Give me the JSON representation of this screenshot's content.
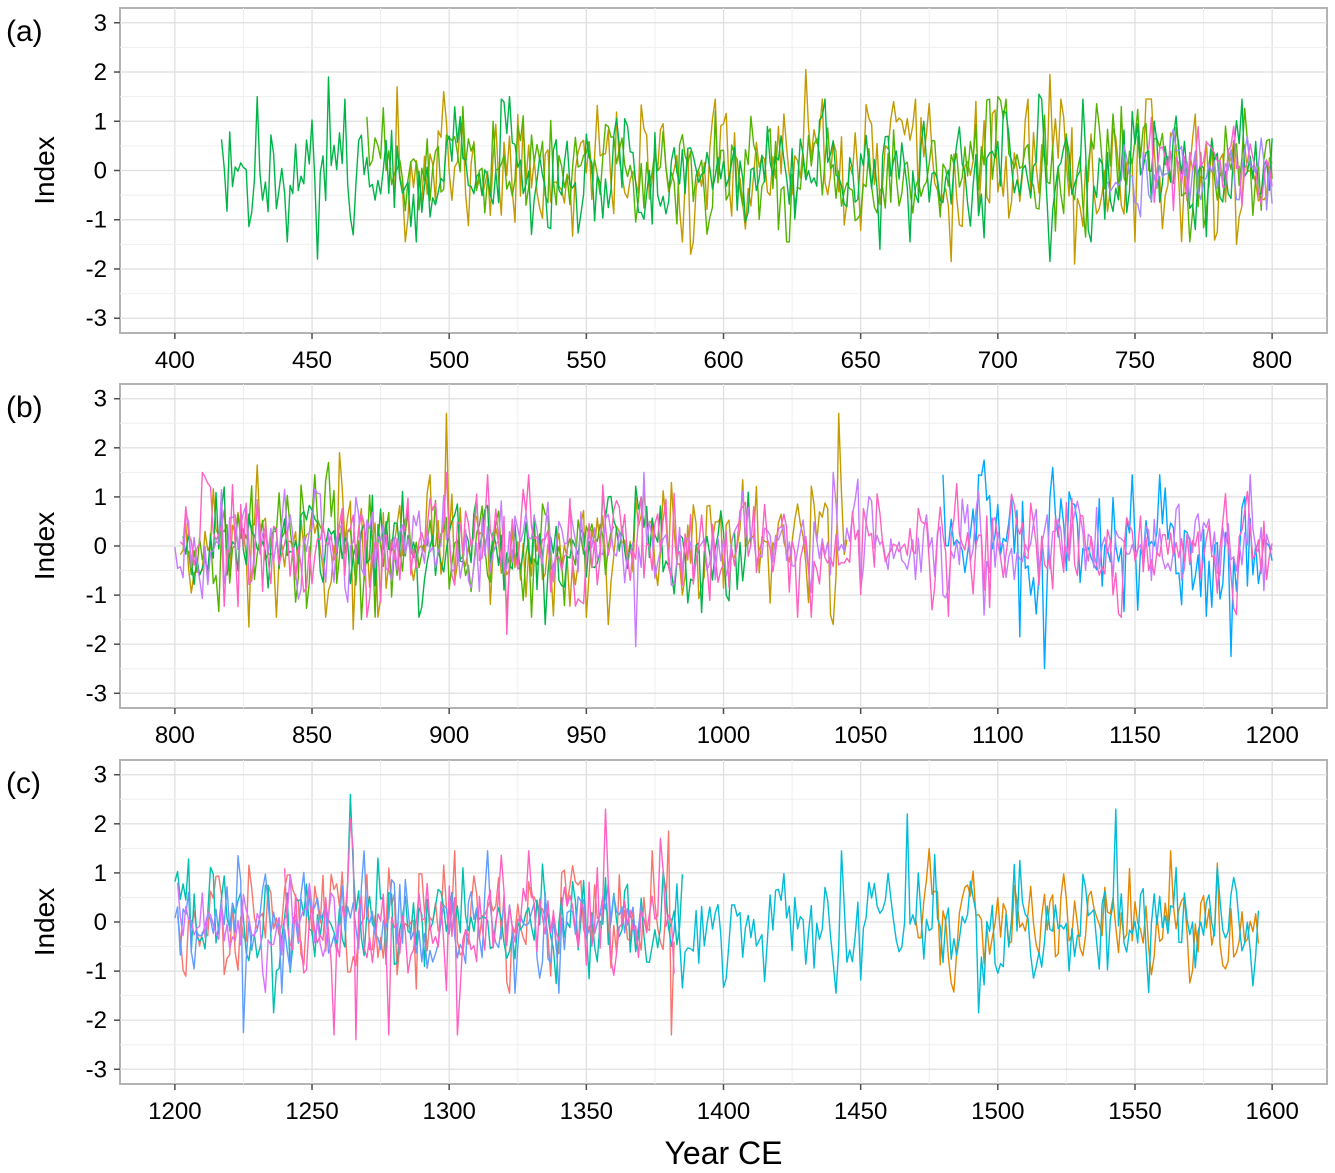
{
  "chart_data": [
    {
      "type": "line",
      "panel_label": "(a)",
      "ylabel": "Index",
      "xlabel": "",
      "xlim": [
        380,
        820
      ],
      "ylim": [
        -3.3,
        3.3
      ],
      "x_ticks": [
        400,
        450,
        500,
        550,
        600,
        650,
        700,
        750,
        800
      ],
      "x_tick_labels": [
        "400",
        "450",
        "500",
        "550",
        "600",
        "650",
        "700",
        "750",
        "800"
      ],
      "y_ticks": [
        -3,
        -2,
        -1,
        0,
        1,
        2,
        3
      ],
      "y_tick_labels": [
        "-3",
        "-2",
        "-1",
        "0",
        "1",
        "2",
        "3"
      ],
      "grid": true,
      "legend": "none",
      "series": [
        {
          "color": "#C49A00",
          "start": 480,
          "end": 800,
          "seed": 11,
          "amp": 0.62,
          "peaks": [
            [
              481,
              1.7
            ],
            [
              498,
              1.6
            ],
            [
              588,
              -1.7
            ],
            [
              630,
              2.05
            ],
            [
              662,
              1.4
            ],
            [
              683,
              -1.85
            ],
            [
              719,
              1.95
            ],
            [
              728,
              -1.9
            ],
            [
              787,
              -1.5
            ]
          ]
        },
        {
          "color": "#53B400",
          "start": 470,
          "end": 800,
          "seed": 23,
          "amp": 0.55,
          "peaks": [
            [
              505,
              1.3
            ],
            [
              597,
              1.2
            ],
            [
              620,
              -1.2
            ],
            [
              700,
              1.5
            ],
            [
              745,
              1.3
            ]
          ]
        },
        {
          "color": "#00B548",
          "start": 417,
          "end": 800,
          "seed": 37,
          "amp": 0.55,
          "peaks": [
            [
              430,
              1.5
            ],
            [
              452,
              -1.8
            ],
            [
              456,
              1.9
            ],
            [
              522,
              1.5
            ],
            [
              530,
              -1.3
            ],
            [
              657,
              -1.6
            ],
            [
              715,
              1.55
            ],
            [
              719,
              -1.85
            ],
            [
              731,
              1.45
            ],
            [
              757,
              1.0
            ],
            [
              772,
              -1.2
            ]
          ]
        },
        {
          "color": "#A58AFF",
          "start": 740,
          "end": 800,
          "seed": 41,
          "amp": 0.4,
          "peaks": []
        },
        {
          "color": "#FB61D7",
          "start": 755,
          "end": 800,
          "seed": 53,
          "amp": 0.42,
          "peaks": [
            [
              786,
              0.9
            ]
          ]
        }
      ]
    },
    {
      "type": "line",
      "panel_label": "(b)",
      "ylabel": "Index",
      "xlabel": "",
      "xlim": [
        780,
        1220
      ],
      "ylim": [
        -3.3,
        3.3
      ],
      "x_ticks": [
        800,
        850,
        900,
        950,
        1000,
        1050,
        1100,
        1150,
        1200
      ],
      "x_tick_labels": [
        "800",
        "850",
        "900",
        "950",
        "1000",
        "1050",
        "1100",
        "1150",
        "1200"
      ],
      "y_ticks": [
        -3,
        -2,
        -1,
        0,
        1,
        2,
        3
      ],
      "y_tick_labels": [
        "-3",
        "-2",
        "-1",
        "0",
        "1",
        "2",
        "3"
      ],
      "grid": true,
      "legend": "none",
      "series": [
        {
          "color": "#C49A00",
          "start": 802,
          "end": 1045,
          "seed": 61,
          "amp": 0.62,
          "peaks": [
            [
              827,
              -1.65
            ],
            [
              830,
              1.65
            ],
            [
              860,
              1.9
            ],
            [
              865,
              -1.7
            ],
            [
              899,
              2.7
            ],
            [
              958,
              -1.6
            ],
            [
              1040,
              -1.6
            ],
            [
              1042,
              2.7
            ]
          ]
        },
        {
          "color": "#53B400",
          "start": 805,
          "end": 960,
          "seed": 67,
          "amp": 0.55,
          "peaks": [
            [
              856,
              1.7
            ],
            [
              868,
              -1.5
            ]
          ]
        },
        {
          "color": "#00B548",
          "start": 803,
          "end": 1010,
          "seed": 71,
          "amp": 0.5,
          "peaks": [
            [
              818,
              1.2
            ],
            [
              935,
              -1.6
            ],
            [
              1001,
              -1.0
            ]
          ]
        },
        {
          "color": "#00A9FF",
          "start": 1080,
          "end": 1200,
          "seed": 79,
          "amp": 0.6,
          "peaks": [
            [
              1095,
              1.75
            ],
            [
              1108,
              -1.85
            ],
            [
              1117,
              -2.5
            ],
            [
              1120,
              1.6
            ],
            [
              1185,
              -2.25
            ],
            [
              1190,
              1.0
            ]
          ]
        },
        {
          "color": "#C77CFF",
          "start": 800,
          "end": 1200,
          "seed": 83,
          "amp": 0.5,
          "peaks": [
            [
              968,
              -2.05
            ],
            [
              971,
              1.5
            ],
            [
              1040,
              1.5
            ],
            [
              1080,
              -1.0
            ]
          ]
        },
        {
          "color": "#FF61C3",
          "start": 802,
          "end": 1200,
          "seed": 89,
          "amp": 0.55,
          "peaks": [
            [
              810,
              1.5
            ],
            [
              899,
              1.5
            ],
            [
              921,
              -1.8
            ],
            [
              1187,
              -1.4
            ]
          ]
        }
      ]
    },
    {
      "type": "line",
      "panel_label": "(c)",
      "ylabel": "Index",
      "xlabel": "Year CE",
      "xlim": [
        1180,
        1620
      ],
      "ylim": [
        -3.3,
        3.3
      ],
      "x_ticks": [
        1200,
        1250,
        1300,
        1350,
        1400,
        1450,
        1500,
        1550,
        1600
      ],
      "x_tick_labels": [
        "1200",
        "1250",
        "1300",
        "1350",
        "1400",
        "1450",
        "1500",
        "1550",
        "1600"
      ],
      "y_ticks": [
        -3,
        -2,
        -1,
        0,
        1,
        2,
        3
      ],
      "y_tick_labels": [
        "-3",
        "-2",
        "-1",
        "0",
        "1",
        "2",
        "3"
      ],
      "grid": true,
      "legend": "none",
      "series": [
        {
          "color": "#F8766D",
          "start": 1201,
          "end": 1382,
          "seed": 97,
          "amp": 0.6,
          "peaks": [
            [
              1380,
              1.85
            ],
            [
              1381,
              -2.3
            ]
          ]
        },
        {
          "color": "#E58700",
          "start": 1470,
          "end": 1595,
          "seed": 101,
          "amp": 0.5,
          "peaks": [
            [
              1475,
              1.5
            ],
            [
              1580,
              1.2
            ]
          ]
        },
        {
          "color": "#00C0AF",
          "start": 1200,
          "end": 1385,
          "seed": 103,
          "amp": 0.55,
          "peaks": [
            [
              1264,
              2.6
            ],
            [
              1236,
              -1.85
            ]
          ]
        },
        {
          "color": "#00BCD8",
          "start": 1380,
          "end": 1595,
          "seed": 107,
          "amp": 0.55,
          "peaks": [
            [
              1467,
              2.2
            ],
            [
              1493,
              -1.85
            ],
            [
              1543,
              2.3
            ],
            [
              1593,
              -1.3
            ]
          ]
        },
        {
          "color": "#619CFF",
          "start": 1200,
          "end": 1370,
          "seed": 109,
          "amp": 0.5,
          "peaks": [
            [
              1225,
              -2.25
            ],
            [
              1223,
              1.35
            ]
          ]
        },
        {
          "color": "#DB72FB",
          "start": 1201,
          "end": 1260,
          "seed": 113,
          "amp": 0.45,
          "peaks": [
            [
              1201,
              0.8
            ]
          ]
        },
        {
          "color": "#FF61C3",
          "start": 1240,
          "end": 1382,
          "seed": 127,
          "amp": 0.65,
          "peaks": [
            [
              1258,
              -2.3
            ],
            [
              1264,
              2.1
            ],
            [
              1266,
              -2.4
            ],
            [
              1278,
              -2.3
            ],
            [
              1303,
              -2.3
            ],
            [
              1357,
              2.3
            ],
            [
              1377,
              1.7
            ]
          ]
        }
      ]
    }
  ]
}
